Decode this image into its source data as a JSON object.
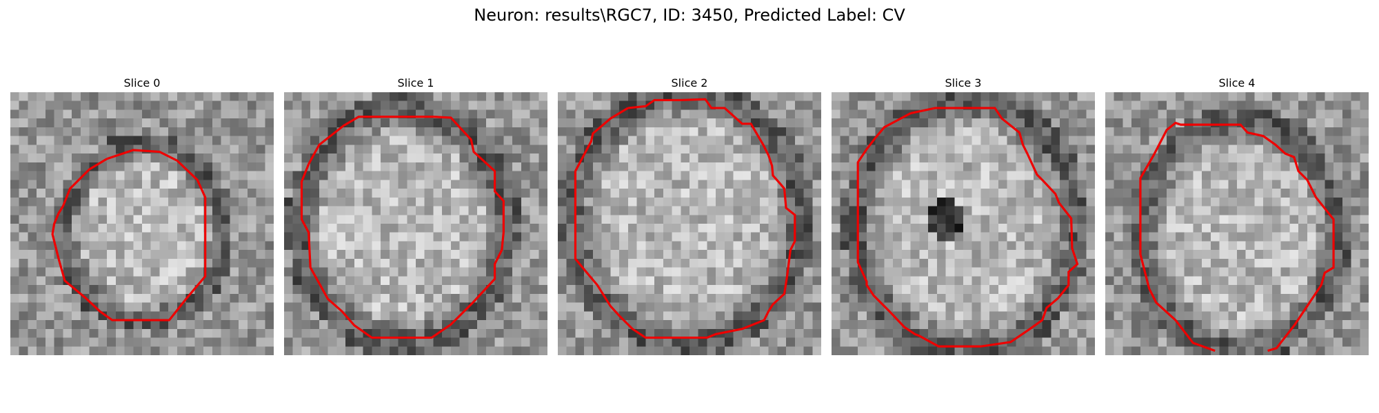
{
  "figure": {
    "title": "Neuron: results\\RGC7, ID: 3450, Predicted Label: CV",
    "contour_color": "#ee0000"
  },
  "panels": [
    {
      "title": "Slice 0"
    },
    {
      "title": "Slice 1"
    },
    {
      "title": "Slice 2"
    },
    {
      "title": "Slice 3"
    },
    {
      "title": "Slice 4"
    }
  ]
}
